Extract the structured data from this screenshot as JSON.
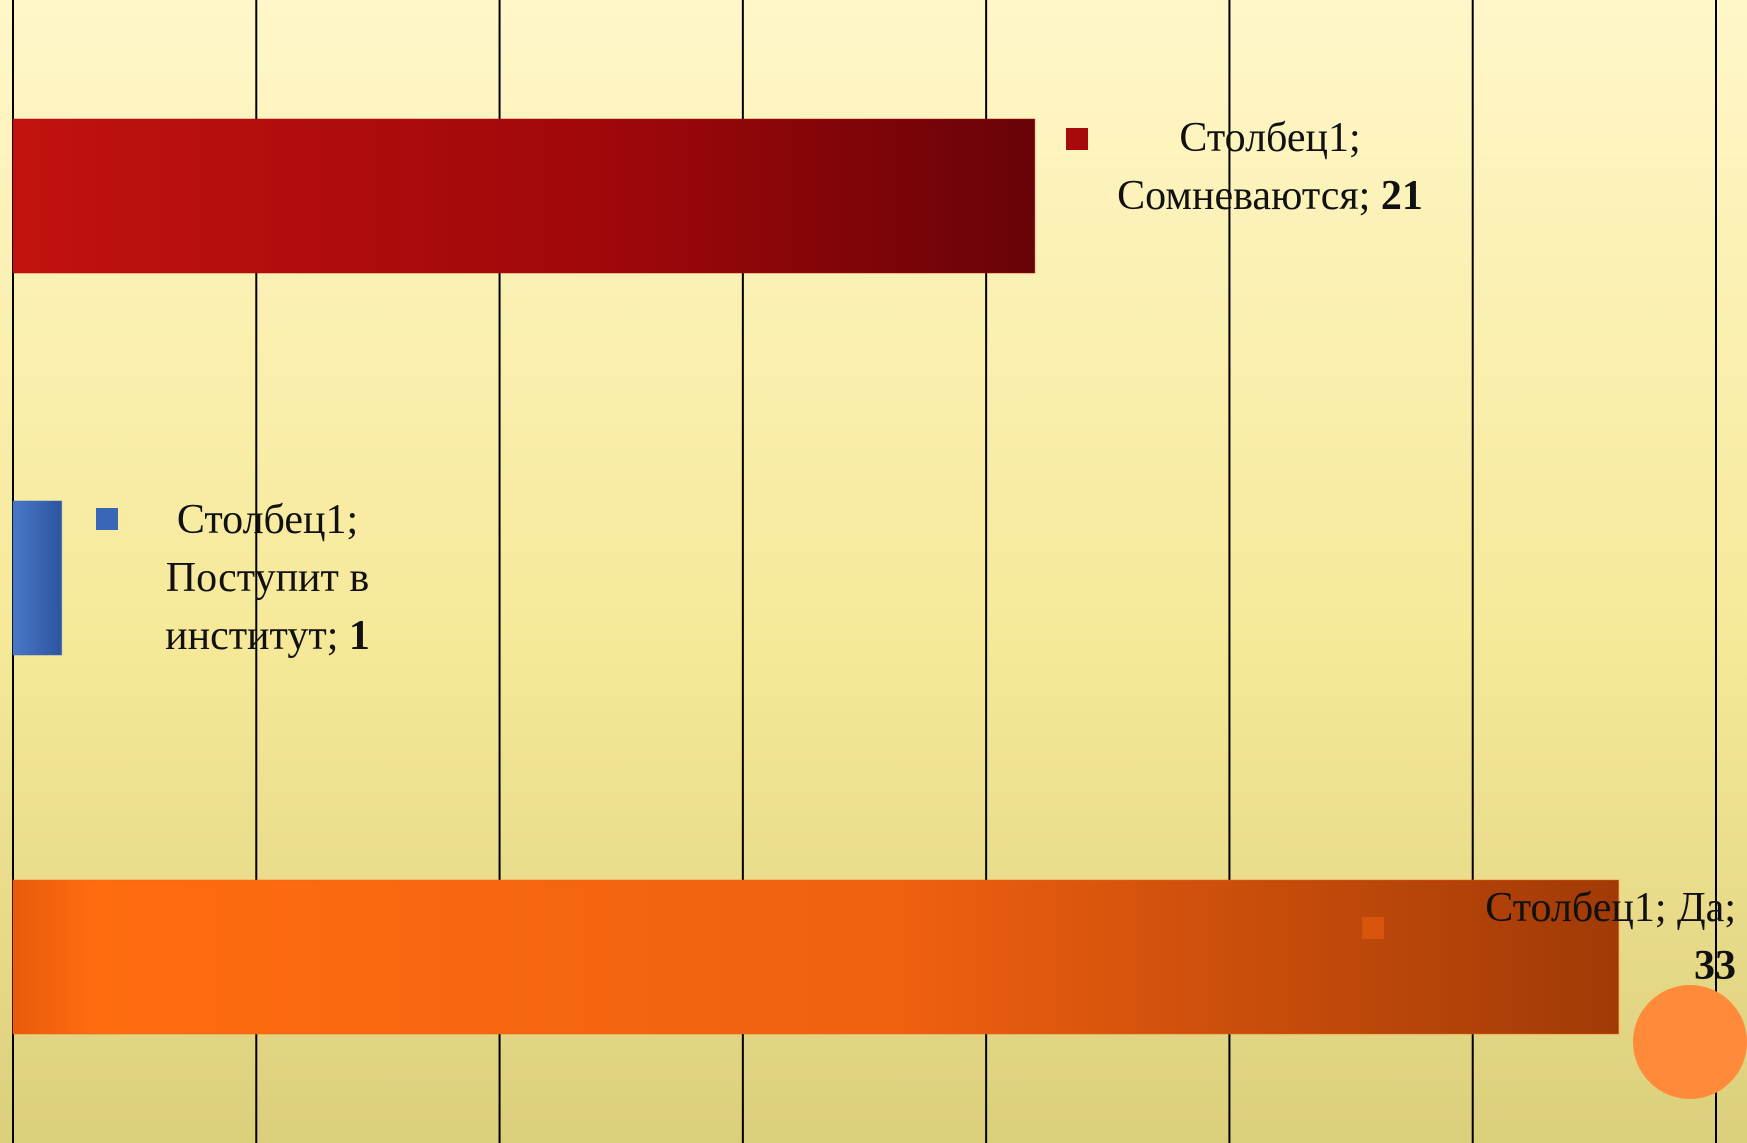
{
  "chart_data": {
    "type": "hbar",
    "series": [
      {
        "name": "Столбец1",
        "values": [
          21,
          1,
          33
        ]
      }
    ],
    "categories": [
      "Сомневаются",
      "Поступит в институт",
      "Да"
    ],
    "colors": [
      "#a80a0c",
      "#3a66b8",
      "#f0600e"
    ],
    "data_label_separator": "; ",
    "xlim": [
      0,
      35
    ],
    "xticks": [
      0,
      5,
      10,
      15,
      20,
      25,
      30,
      35
    ],
    "grid": true
  }
}
